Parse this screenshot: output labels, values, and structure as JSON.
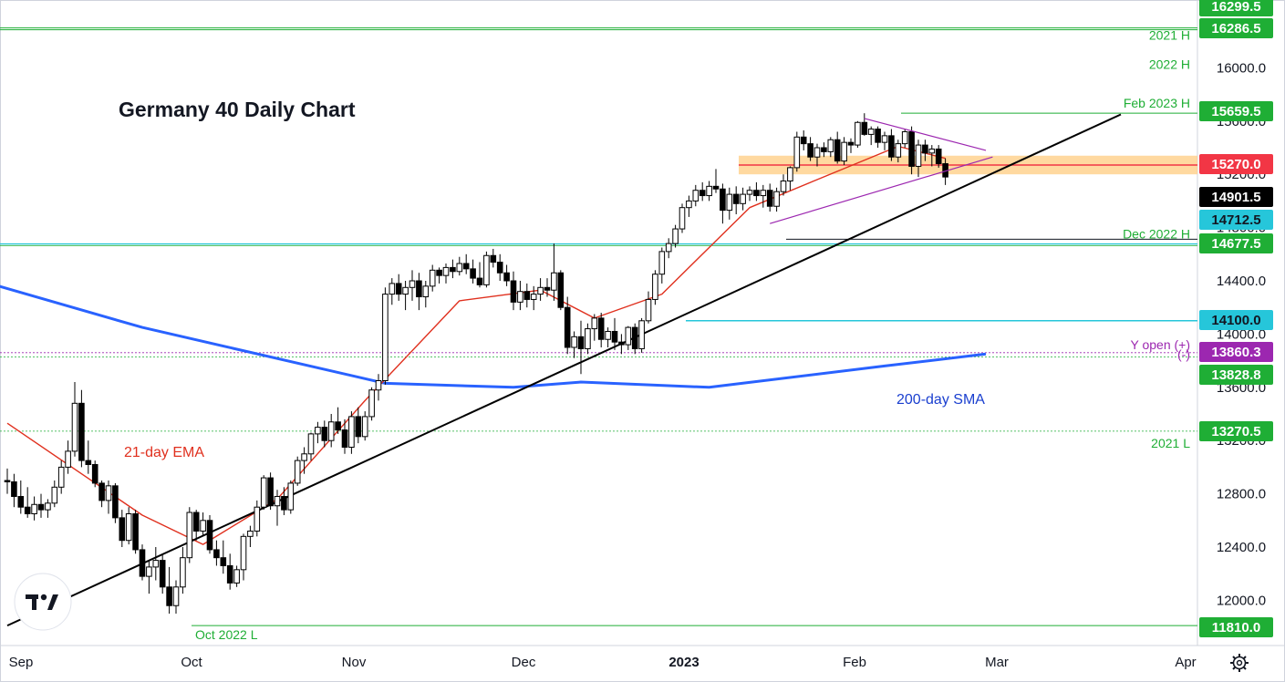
{
  "chart_data": {
    "type": "candlestick",
    "title": "Germany 40 Daily Chart",
    "instrument_timeframe": "Daily",
    "ylim": [
      11700,
      16320
    ],
    "price_ticks": [
      12000.0,
      12400.0,
      12800.0,
      13200.0,
      13600.0,
      14000.0,
      14400.0,
      14800.0,
      15200.0,
      15600.0,
      16000.0
    ],
    "price_tick_labels": [
      "12000.0",
      "12400.0",
      "12800.0",
      "13200.0",
      "13600.0",
      "14000.0",
      "14400.0",
      "14800.0",
      "15200.0",
      "15600.0",
      "16000.0"
    ],
    "time_labels": [
      "Sep",
      "Oct",
      "Nov",
      "Dec",
      "2023",
      "Feb",
      "Mar",
      "Apr"
    ],
    "price_labels": [
      {
        "value": 16299.5,
        "label": "16299.5",
        "color": "#1fae35"
      },
      {
        "value": 16286.5,
        "label": "16286.5",
        "color": "#1fae35"
      },
      {
        "value": 15659.5,
        "label": "15659.5",
        "color": "#1fae35"
      },
      {
        "value": 15270.0,
        "label": "15270.0",
        "color": "#f23645"
      },
      {
        "value": 14901.5,
        "label": "14901.5",
        "color": "#000000"
      },
      {
        "value": 14712.5,
        "label": "14712.5",
        "color": "#26c6da"
      },
      {
        "value": 14677.5,
        "label": "14677.5",
        "color": "#1fae35"
      },
      {
        "value": 14100.0,
        "label": "14100.0",
        "color": "#26c6da"
      },
      {
        "value": 13860.3,
        "label": "13860.3",
        "color": "#9c27b0"
      },
      {
        "value": 13828.8,
        "label": "13828.8",
        "color": "#1fae35"
      },
      {
        "value": 13270.5,
        "label": "13270.5",
        "color": "#1fae35"
      },
      {
        "value": 11810.0,
        "label": "11810.0",
        "color": "#1fae35"
      }
    ],
    "levels": [
      {
        "name": "2021 H",
        "value": 16299.5,
        "color": "#1fae35"
      },
      {
        "name": "2022 H",
        "value": 16286.5,
        "color": "#1fae35"
      },
      {
        "name": "Feb 2023 H",
        "value": 15659.5,
        "color": "#1fae35"
      },
      {
        "name": "Dec 2022 H",
        "value": 14677.5,
        "color": "#1fae35"
      },
      {
        "name": "Y open (+)",
        "value": 13860.3,
        "color": "#9c27b0"
      },
      {
        "name": "(-)",
        "value": 13828.8,
        "color": "#9c27b0"
      },
      {
        "name": "2021 L",
        "value": 13270.5,
        "color": "#1fae35"
      },
      {
        "name": "Oct 2022 L",
        "value": 11810.0,
        "color": "#1fae35"
      }
    ],
    "annotations": {
      "ema": "21-day EMA",
      "sma": "200-day SMA"
    },
    "ohlc": [
      [
        12900,
        12990,
        12800,
        12890
      ],
      [
        12890,
        12950,
        12700,
        12780
      ],
      [
        12780,
        12900,
        12650,
        12700
      ],
      [
        12700,
        12850,
        12620,
        12650
      ],
      [
        12650,
        12780,
        12600,
        12720
      ],
      [
        12720,
        12800,
        12620,
        12680
      ],
      [
        12680,
        12760,
        12620,
        12730
      ],
      [
        12730,
        12900,
        12700,
        12850
      ],
      [
        12850,
        13050,
        12800,
        13000
      ],
      [
        13000,
        13200,
        12950,
        13120
      ],
      [
        13120,
        13640,
        13080,
        13480
      ],
      [
        13480,
        13580,
        13000,
        13050
      ],
      [
        13050,
        13200,
        12950,
        13020
      ],
      [
        13020,
        13050,
        12850,
        12880
      ],
      [
        12880,
        12900,
        12700,
        12750
      ],
      [
        12750,
        12900,
        12650,
        12860
      ],
      [
        12860,
        12880,
        12580,
        12620
      ],
      [
        12620,
        12680,
        12400,
        12450
      ],
      [
        12450,
        12700,
        12420,
        12650
      ],
      [
        12650,
        12680,
        12350,
        12380
      ],
      [
        12380,
        12420,
        12150,
        12180
      ],
      [
        12180,
        12300,
        12050,
        12250
      ],
      [
        12250,
        12400,
        12150,
        12300
      ],
      [
        12300,
        12350,
        12050,
        12100
      ],
      [
        12100,
        12250,
        11900,
        11960
      ],
      [
        11960,
        12150,
        11900,
        12100
      ],
      [
        12100,
        12400,
        12050,
        12320
      ],
      [
        12320,
        12700,
        12280,
        12660
      ],
      [
        12660,
        12680,
        12450,
        12520
      ],
      [
        12520,
        12660,
        12480,
        12600
      ],
      [
        12600,
        12640,
        12350,
        12380
      ],
      [
        12380,
        12450,
        12260,
        12320
      ],
      [
        12320,
        12450,
        12200,
        12260
      ],
      [
        12260,
        12350,
        12080,
        12130
      ],
      [
        12130,
        12260,
        12100,
        12230
      ],
      [
        12230,
        12500,
        12150,
        12480
      ],
      [
        12480,
        12560,
        12400,
        12520
      ],
      [
        12520,
        12750,
        12480,
        12700
      ],
      [
        12700,
        12940,
        12680,
        12920
      ],
      [
        12920,
        12960,
        12680,
        12710
      ],
      [
        12710,
        12830,
        12560,
        12780
      ],
      [
        12780,
        12850,
        12640,
        12680
      ],
      [
        12680,
        12900,
        12650,
        12880
      ],
      [
        12880,
        13080,
        12860,
        13050
      ],
      [
        13050,
        13150,
        12950,
        13100
      ],
      [
        13100,
        13260,
        13050,
        13250
      ],
      [
        13250,
        13340,
        13180,
        13300
      ],
      [
        13300,
        13350,
        13150,
        13200
      ],
      [
        13200,
        13400,
        13150,
        13340
      ],
      [
        13340,
        13450,
        13250,
        13280
      ],
      [
        13280,
        13360,
        13100,
        13150
      ],
      [
        13150,
        13420,
        13100,
        13380
      ],
      [
        13380,
        13450,
        13180,
        13230
      ],
      [
        13230,
        13420,
        13200,
        13380
      ],
      [
        13380,
        13600,
        13350,
        13580
      ],
      [
        13580,
        13700,
        13500,
        13650
      ],
      [
        13650,
        14350,
        13620,
        14300
      ],
      [
        14300,
        14420,
        14220,
        14380
      ],
      [
        14380,
        14450,
        14250,
        14300
      ],
      [
        14300,
        14400,
        14180,
        14350
      ],
      [
        14350,
        14480,
        14250,
        14400
      ],
      [
        14400,
        14460,
        14180,
        14280
      ],
      [
        14280,
        14400,
        14200,
        14360
      ],
      [
        14360,
        14520,
        14320,
        14480
      ],
      [
        14480,
        14500,
        14380,
        14440
      ],
      [
        14440,
        14530,
        14380,
        14500
      ],
      [
        14500,
        14560,
        14420,
        14470
      ],
      [
        14470,
        14580,
        14440,
        14530
      ],
      [
        14530,
        14600,
        14450,
        14490
      ],
      [
        14490,
        14560,
        14380,
        14420
      ],
      [
        14420,
        14540,
        14350,
        14370
      ],
      [
        14370,
        14620,
        14350,
        14590
      ],
      [
        14590,
        14640,
        14500,
        14540
      ],
      [
        14540,
        14600,
        14400,
        14460
      ],
      [
        14460,
        14520,
        14360,
        14400
      ],
      [
        14400,
        14470,
        14180,
        14240
      ],
      [
        14240,
        14400,
        14180,
        14320
      ],
      [
        14320,
        14380,
        14200,
        14260
      ],
      [
        14260,
        14360,
        14180,
        14300
      ],
      [
        14300,
        14420,
        14250,
        14350
      ],
      [
        14350,
        14420,
        14280,
        14330
      ],
      [
        14330,
        14680,
        14250,
        14460
      ],
      [
        14460,
        14480,
        14180,
        14200
      ],
      [
        14200,
        14280,
        13850,
        13900
      ],
      [
        13900,
        14020,
        13820,
        13980
      ],
      [
        13980,
        14100,
        13700,
        13890
      ],
      [
        13890,
        14080,
        13850,
        14040
      ],
      [
        14040,
        14150,
        13950,
        14120
      ],
      [
        14120,
        14160,
        13900,
        13960
      ],
      [
        13960,
        14050,
        13900,
        14020
      ],
      [
        14020,
        14120,
        13880,
        13940
      ],
      [
        13940,
        14000,
        13850,
        13920
      ],
      [
        13920,
        14060,
        13880,
        14050
      ],
      [
        14050,
        14080,
        13850,
        13890
      ],
      [
        13890,
        14120,
        13860,
        14100
      ],
      [
        14100,
        14320,
        14080,
        14260
      ],
      [
        14260,
        14480,
        14220,
        14450
      ],
      [
        14450,
        14650,
        14380,
        14620
      ],
      [
        14620,
        14720,
        14570,
        14680
      ],
      [
        14680,
        14820,
        14650,
        14790
      ],
      [
        14790,
        14980,
        14760,
        14950
      ],
      [
        14950,
        15040,
        14880,
        15000
      ],
      [
        15000,
        15120,
        14960,
        15080
      ],
      [
        15080,
        15140,
        15000,
        15040
      ],
      [
        15040,
        15150,
        15000,
        15110
      ],
      [
        15110,
        15240,
        15060,
        15090
      ],
      [
        15090,
        15130,
        14830,
        14930
      ],
      [
        14930,
        15100,
        14860,
        15050
      ],
      [
        15050,
        15110,
        14900,
        14980
      ],
      [
        14980,
        15100,
        14930,
        15050
      ],
      [
        15050,
        15110,
        15000,
        15080
      ],
      [
        15080,
        15140,
        15000,
        15040
      ],
      [
        15040,
        15120,
        14950,
        15080
      ],
      [
        15080,
        15130,
        14920,
        14960
      ],
      [
        14960,
        15100,
        14920,
        15070
      ],
      [
        15070,
        15200,
        15040,
        15150
      ],
      [
        15150,
        15260,
        15080,
        15250
      ],
      [
        15250,
        15520,
        15220,
        15480
      ],
      [
        15480,
        15530,
        15380,
        15430
      ],
      [
        15430,
        15480,
        15300,
        15330
      ],
      [
        15330,
        15430,
        15260,
        15400
      ],
      [
        15400,
        15440,
        15330,
        15370
      ],
      [
        15370,
        15480,
        15330,
        15460
      ],
      [
        15460,
        15520,
        15280,
        15300
      ],
      [
        15300,
        15480,
        15270,
        15440
      ],
      [
        15440,
        15470,
        15360,
        15420
      ],
      [
        15420,
        15600,
        15400,
        15590
      ],
      [
        15590,
        15659,
        15490,
        15500
      ],
      [
        15500,
        15560,
        15420,
        15540
      ],
      [
        15540,
        15560,
        15400,
        15440
      ],
      [
        15440,
        15520,
        15380,
        15490
      ],
      [
        15490,
        15540,
        15300,
        15330
      ],
      [
        15330,
        15460,
        15290,
        15430
      ],
      [
        15430,
        15540,
        15400,
        15520
      ],
      [
        15520,
        15560,
        15200,
        15260
      ],
      [
        15260,
        15460,
        15180,
        15420
      ],
      [
        15420,
        15460,
        15300,
        15360
      ],
      [
        15360,
        15420,
        15260,
        15390
      ],
      [
        15390,
        15420,
        15250,
        15280
      ],
      [
        15280,
        15320,
        15120,
        15180
      ]
    ],
    "ema21": [
      [
        0,
        13330
      ],
      [
        20,
        12640
      ],
      [
        29,
        12420
      ],
      [
        40,
        12760
      ],
      [
        53,
        13500
      ],
      [
        67,
        14250
      ],
      [
        79,
        14330
      ],
      [
        87,
        14120
      ],
      [
        97,
        14300
      ],
      [
        110,
        14950
      ],
      [
        120,
        15160
      ],
      [
        132,
        15410
      ],
      [
        139,
        15320
      ]
    ],
    "sma200": [
      [
        -4,
        14400
      ],
      [
        20,
        14050
      ],
      [
        56,
        13630
      ],
      [
        75,
        13600
      ],
      [
        85,
        13640
      ],
      [
        104,
        13600
      ],
      [
        130,
        13760
      ],
      [
        145,
        13850
      ]
    ],
    "trendline": [
      [
        0,
        11810
      ],
      [
        165,
        15650
      ]
    ],
    "triangle": {
      "upper": [
        [
          127,
          15620
        ],
        [
          145,
          15380
        ]
      ],
      "lower": [
        [
          113,
          14830
        ],
        [
          146,
          15330
        ]
      ],
      "start_top": [
        [
          113,
          14830
        ],
        [
          113,
          14830
        ]
      ]
    },
    "resistance_zone": [
      15200,
      15340
    ],
    "support_lines": [
      14712.5,
      14100.0
    ]
  },
  "ui": {
    "settings_icon": "gear-icon",
    "logo": "TV"
  }
}
